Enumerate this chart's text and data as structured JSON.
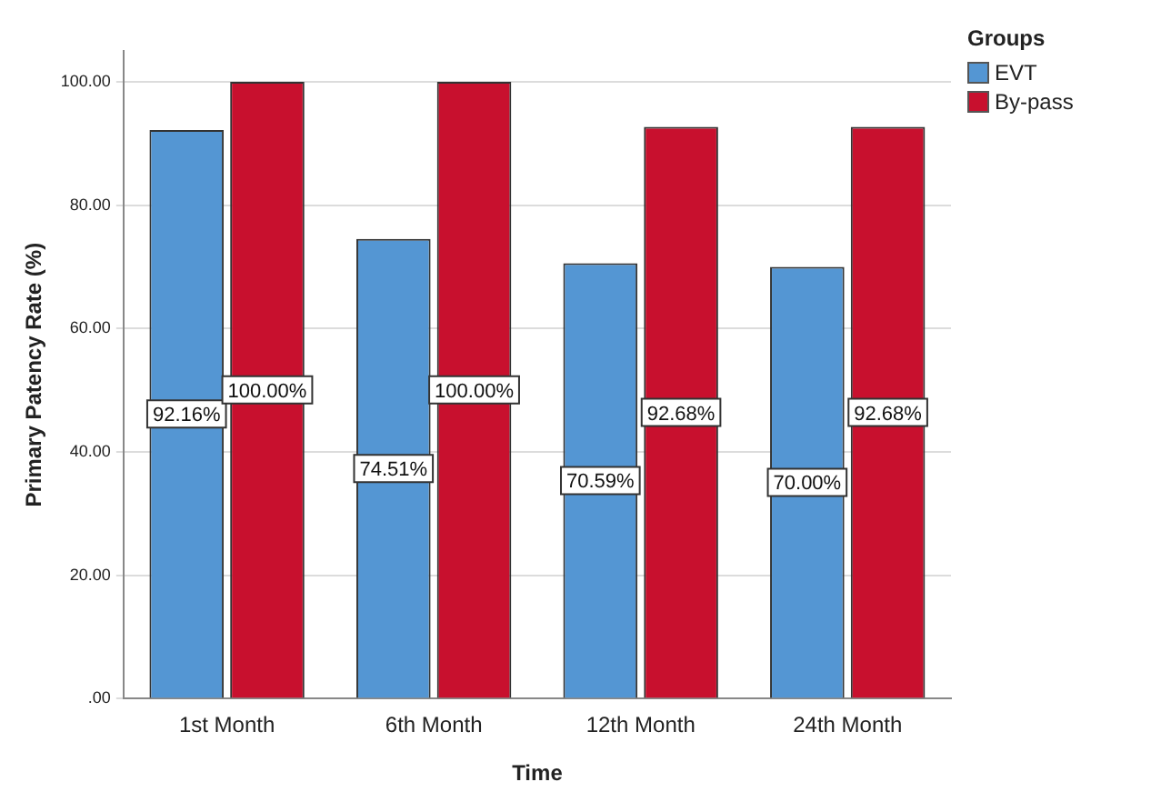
{
  "chart_data": {
    "type": "bar",
    "xlabel": "Time",
    "ylabel": "Primary Patency Rate (%)",
    "legend_title": "Groups",
    "legend": "top right",
    "categories": [
      "1st Month",
      "6th Month",
      "12th Month",
      "24th Month"
    ],
    "series": [
      {
        "name": "EVT",
        "color": "#5496d3",
        "values": [
          92.16,
          74.51,
          70.59,
          70.0
        ],
        "value_labels": [
          "92.16%",
          "74.51%",
          "70.59%",
          "70.00%"
        ]
      },
      {
        "name": "By-pass",
        "color": "#c8102e",
        "values": [
          100.0,
          100.0,
          92.68,
          92.68
        ],
        "value_labels": [
          "100.00%",
          "100.00%",
          "92.68%",
          "92.68%"
        ]
      }
    ],
    "ylim": [
      0,
      105
    ],
    "yticks": [
      {
        "value": 0,
        "label": ".00"
      },
      {
        "value": 20,
        "label": "20.00"
      },
      {
        "value": 40,
        "label": "40.00"
      },
      {
        "value": 60,
        "label": "60.00"
      },
      {
        "value": 80,
        "label": "80.00"
      },
      {
        "value": 100,
        "label": "100.00"
      }
    ],
    "grid": "y"
  }
}
